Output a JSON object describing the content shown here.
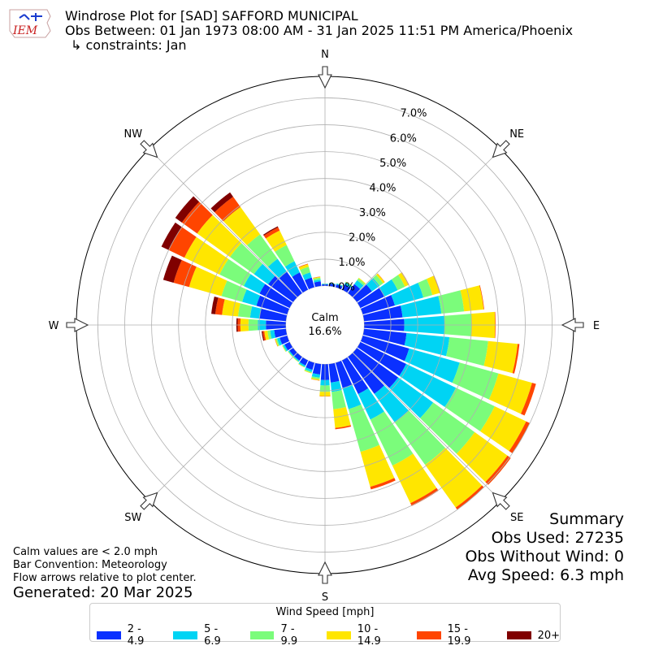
{
  "header": {
    "title": "Windrose Plot for [SAD] SAFFORD MUNICIPAL",
    "obs_between": "Obs Between: 01 Jan 1973 08:00 AM - 31 Jan 2025 11:51 PM America/Phoenix",
    "constraints": "↳ constraints: Jan"
  },
  "logo_text": "IEM",
  "calm": {
    "label": "Calm",
    "value": "16.6%"
  },
  "notes": {
    "calm_def": "Calm values are < 2.0 mph",
    "bar_convention": "Bar Convention: Meteorology",
    "flow_arrows": "Flow arrows relative to plot center.",
    "generated": "Generated: 20 Mar 2025"
  },
  "summary": {
    "title": "Summary",
    "obs_used": "Obs Used: 27235",
    "obs_without_wind": "Obs Without Wind: 0",
    "avg_speed": "Avg Speed: 6.3 mph"
  },
  "legend": {
    "title": "Wind Speed [mph]",
    "items": [
      {
        "label": "2 - 4.9",
        "color": "#0a30ff"
      },
      {
        "label": "5 - 6.9",
        "color": "#00d4f4"
      },
      {
        "label": "7 - 9.9",
        "color": "#7bfc7b"
      },
      {
        "label": "10 - 14.9",
        "color": "#ffe600"
      },
      {
        "label": "15 - 19.9",
        "color": "#ff4500"
      },
      {
        "label": "20+",
        "color": "#800000"
      }
    ]
  },
  "chart_data": {
    "type": "windrose",
    "calm_percent": 16.6,
    "radial_ticks": [
      "0.0%",
      "1.0%",
      "2.0%",
      "3.0%",
      "4.0%",
      "5.0%",
      "6.0%",
      "7.0%"
    ],
    "rmax": 7.8,
    "compass_labels": [
      "N",
      "NE",
      "E",
      "SE",
      "S",
      "SW",
      "W",
      "NW"
    ],
    "speed_bins": [
      "2 - 4.9",
      "5 - 6.9",
      "7 - 9.9",
      "10 - 14.9",
      "15 - 19.9",
      "20+"
    ],
    "directions_deg": [
      0,
      10,
      20,
      30,
      40,
      50,
      60,
      70,
      80,
      90,
      100,
      110,
      120,
      130,
      140,
      150,
      160,
      170,
      180,
      190,
      200,
      210,
      220,
      230,
      240,
      250,
      260,
      270,
      280,
      290,
      300,
      310,
      320,
      330,
      340,
      350
    ],
    "cumulative_percent": [
      [
        0.06,
        0.08,
        0.09,
        0.09,
        0.09,
        0.09
      ],
      [
        0.1,
        0.12,
        0.13,
        0.13,
        0.13,
        0.13
      ],
      [
        0.12,
        0.15,
        0.16,
        0.16,
        0.16,
        0.16
      ],
      [
        0.22,
        0.3,
        0.33,
        0.34,
        0.34,
        0.34
      ],
      [
        0.42,
        0.6,
        0.68,
        0.71,
        0.71,
        0.71
      ],
      [
        0.7,
        1.05,
        1.21,
        1.28,
        1.29,
        1.29
      ],
      [
        1.0,
        1.55,
        1.85,
        2.0,
        2.02,
        2.02
      ],
      [
        1.25,
        2.35,
        2.7,
        2.98,
        3.0,
        3.0
      ],
      [
        1.45,
        2.9,
        3.75,
        4.48,
        4.5,
        4.5
      ],
      [
        1.5,
        3.0,
        4.0,
        4.88,
        4.9,
        4.9
      ],
      [
        1.6,
        3.2,
        4.65,
        5.75,
        5.82,
        5.82
      ],
      [
        1.8,
        3.75,
        5.25,
        6.55,
        6.7,
        6.7
      ],
      [
        1.9,
        3.95,
        5.55,
        6.85,
        7.0,
        7.0
      ],
      [
        1.9,
        3.5,
        5.4,
        6.9,
        7.05,
        7.05
      ],
      [
        1.7,
        3.0,
        4.95,
        6.9,
        7.0,
        7.0
      ],
      [
        1.4,
        2.45,
        4.35,
        5.9,
        6.02,
        6.02
      ],
      [
        0.98,
        1.8,
        3.45,
        4.8,
        4.9,
        4.9
      ],
      [
        0.7,
        1.05,
        1.7,
        2.4,
        2.45,
        2.45
      ],
      [
        0.6,
        0.8,
        1.04,
        1.2,
        1.21,
        1.21
      ],
      [
        0.4,
        0.52,
        0.58,
        0.62,
        0.63,
        0.63
      ],
      [
        0.28,
        0.36,
        0.4,
        0.42,
        0.42,
        0.42
      ],
      [
        0.22,
        0.28,
        0.3,
        0.31,
        0.31,
        0.31
      ],
      [
        0.18,
        0.22,
        0.24,
        0.25,
        0.25,
        0.25
      ],
      [
        0.18,
        0.22,
        0.24,
        0.25,
        0.25,
        0.25
      ],
      [
        0.22,
        0.28,
        0.31,
        0.32,
        0.32,
        0.32
      ],
      [
        0.3,
        0.4,
        0.45,
        0.48,
        0.49,
        0.49
      ],
      [
        0.45,
        0.6,
        0.7,
        0.82,
        0.88,
        0.92
      ],
      [
        0.75,
        1.05,
        1.4,
        1.7,
        1.8,
        1.85
      ],
      [
        1.0,
        1.35,
        1.8,
        2.4,
        2.65,
        2.8
      ],
      [
        1.2,
        1.75,
        2.55,
        3.8,
        4.4,
        4.8
      ],
      [
        1.25,
        1.9,
        2.9,
        4.35,
        5.0,
        5.3
      ],
      [
        1.15,
        1.8,
        2.9,
        4.4,
        5.1,
        5.4
      ],
      [
        0.98,
        1.58,
        2.7,
        3.95,
        4.42,
        4.62
      ],
      [
        0.72,
        1.18,
        1.85,
        2.45,
        2.58,
        2.62
      ],
      [
        0.38,
        0.58,
        0.8,
        0.9,
        0.92,
        0.92
      ],
      [
        0.18,
        0.25,
        0.32,
        0.35,
        0.36,
        0.36
      ]
    ]
  }
}
